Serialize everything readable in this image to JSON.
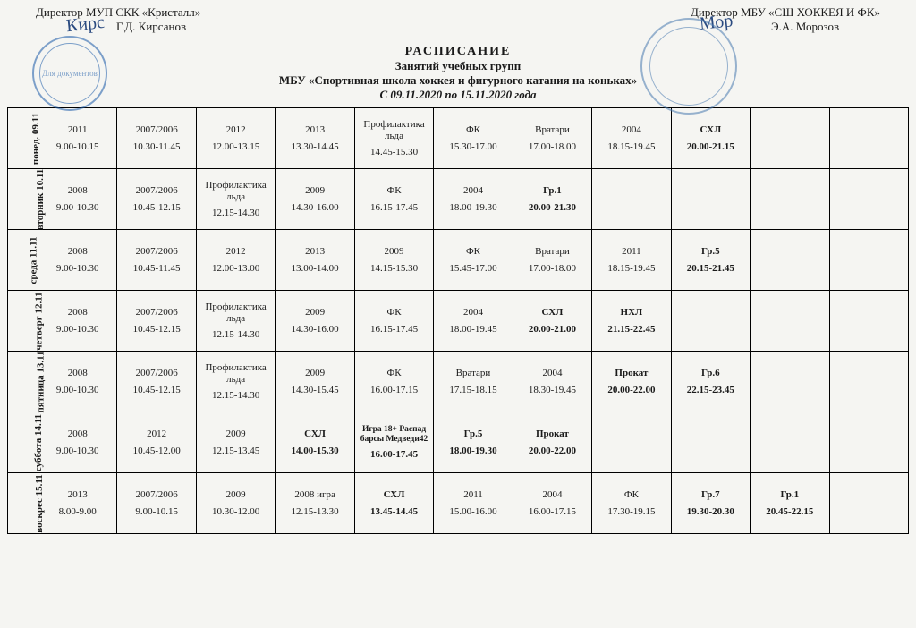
{
  "header": {
    "left_title": "Директор МУП СКК «Кристалл»",
    "left_name": "Г.Д. Кирсанов",
    "left_signature": "Кирс",
    "right_title": "Директор МБУ «СШ ХОККЕЯ И ФК»",
    "right_name": "Э.А. Морозов",
    "right_signature": "Мор",
    "stamp_left_text": "Для документов",
    "stamp_right_text": ""
  },
  "title": {
    "main": "РАСПИСАНИЕ",
    "sub1": "Занятий учебных групп",
    "sub2": "МБУ «Спортивная школа хоккея и фигурного катания на коньках»",
    "dates": "С 09.11.2020 по 15.11.2020 года"
  },
  "days": [
    {
      "label": "понед. 09.11"
    },
    {
      "label": "вторник 10.11"
    },
    {
      "label": "среда 11.11"
    },
    {
      "label": "четверг 12.11"
    },
    {
      "label": "пятница 13.11"
    },
    {
      "label": "суббота 14.11"
    },
    {
      "label": "воскрес 15.11"
    }
  ],
  "rows": [
    [
      {
        "g": "2011",
        "t": "9.00-10.15"
      },
      {
        "g": "2007/2006",
        "t": "10.30-11.45"
      },
      {
        "g": "2012",
        "t": "12.00-13.15"
      },
      {
        "g": "2013",
        "t": "13.30-14.45"
      },
      {
        "g": "Профилактика льда",
        "t": "14.45-15.30"
      },
      {
        "g": "ФК",
        "t": "15.30-17.00"
      },
      {
        "g": "Вратари",
        "t": "17.00-18.00"
      },
      {
        "g": "2004",
        "t": "18.15-19.45"
      },
      {
        "g": "СХЛ",
        "t": "20.00-21.15",
        "bold": true
      },
      {
        "g": "",
        "t": ""
      },
      {
        "g": "",
        "t": ""
      }
    ],
    [
      {
        "g": "2008",
        "t": "9.00-10.30"
      },
      {
        "g": "2007/2006",
        "t": "10.45-12.15"
      },
      {
        "g": "Профилактика льда",
        "t": "12.15-14.30"
      },
      {
        "g": "2009",
        "t": "14.30-16.00"
      },
      {
        "g": "ФК",
        "t": "16.15-17.45"
      },
      {
        "g": "2004",
        "t": "18.00-19.30"
      },
      {
        "g": "Гр.1",
        "t": "20.00-21.30",
        "bold": true
      },
      {
        "g": "",
        "t": ""
      },
      {
        "g": "",
        "t": ""
      },
      {
        "g": "",
        "t": ""
      },
      {
        "g": "",
        "t": ""
      }
    ],
    [
      {
        "g": "2008",
        "t": "9.00-10.30"
      },
      {
        "g": "2007/2006",
        "t": "10.45-11.45"
      },
      {
        "g": "2012",
        "t": "12.00-13.00"
      },
      {
        "g": "2013",
        "t": "13.00-14.00"
      },
      {
        "g": "2009",
        "t": "14.15-15.30"
      },
      {
        "g": "ФК",
        "t": "15.45-17.00"
      },
      {
        "g": "Вратари",
        "t": "17.00-18.00"
      },
      {
        "g": "2011",
        "t": "18.15-19.45"
      },
      {
        "g": "Гр.5",
        "t": "20.15-21.45",
        "bold": true
      },
      {
        "g": "",
        "t": ""
      },
      {
        "g": "",
        "t": ""
      }
    ],
    [
      {
        "g": "2008",
        "t": "9.00-10.30"
      },
      {
        "g": "2007/2006",
        "t": "10.45-12.15"
      },
      {
        "g": "Профилактика льда",
        "t": "12.15-14.30"
      },
      {
        "g": "2009",
        "t": "14.30-16.00"
      },
      {
        "g": "ФК",
        "t": "16.15-17.45"
      },
      {
        "g": "2004",
        "t": "18.00-19.45"
      },
      {
        "g": "СХЛ",
        "t": "20.00-21.00",
        "bold": true
      },
      {
        "g": "НХЛ",
        "t": "21.15-22.45",
        "bold": true
      },
      {
        "g": "",
        "t": ""
      },
      {
        "g": "",
        "t": ""
      },
      {
        "g": "",
        "t": ""
      }
    ],
    [
      {
        "g": "2008",
        "t": "9.00-10.30"
      },
      {
        "g": "2007/2006",
        "t": "10.45-12.15"
      },
      {
        "g": "Профилактика льда",
        "t": "12.15-14.30"
      },
      {
        "g": "2009",
        "t": "14.30-15.45"
      },
      {
        "g": "ФК",
        "t": "16.00-17.15"
      },
      {
        "g": "Вратари",
        "t": "17.15-18.15"
      },
      {
        "g": "2004",
        "t": "18.30-19.45"
      },
      {
        "g": "Прокат",
        "t": "20.00-22.00",
        "bold": true
      },
      {
        "g": "Гр.6",
        "t": "22.15-23.45",
        "bold": true
      },
      {
        "g": "",
        "t": ""
      },
      {
        "g": "",
        "t": ""
      }
    ],
    [
      {
        "g": "2008",
        "t": "9.00-10.30"
      },
      {
        "g": "2012",
        "t": "10.45-12.00"
      },
      {
        "g": "2009",
        "t": "12.15-13.45"
      },
      {
        "g": "СХЛ",
        "t": "14.00-15.30",
        "bold": true
      },
      {
        "g": "Игра 18+ Распад барсы Медведи42",
        "t": "16.00-17.45",
        "small": true,
        "bold": true
      },
      {
        "g": "Гр.5",
        "t": "18.00-19.30",
        "bold": true
      },
      {
        "g": "Прокат",
        "t": "20.00-22.00",
        "bold": true
      },
      {
        "g": "",
        "t": ""
      },
      {
        "g": "",
        "t": ""
      },
      {
        "g": "",
        "t": ""
      },
      {
        "g": "",
        "t": ""
      }
    ],
    [
      {
        "g": "2013",
        "t": "8.00-9.00"
      },
      {
        "g": "2007/2006",
        "t": "9.00-10.15"
      },
      {
        "g": "2009",
        "t": "10.30-12.00"
      },
      {
        "g": "2008 игра",
        "t": "12.15-13.30"
      },
      {
        "g": "СХЛ",
        "t": "13.45-14.45",
        "bold": true
      },
      {
        "g": "2011",
        "t": "15.00-16.00"
      },
      {
        "g": "2004",
        "t": "16.00-17.15"
      },
      {
        "g": "ФК",
        "t": "17.30-19.15"
      },
      {
        "g": "Гр.7",
        "t": "19.30-20.30",
        "bold": true
      },
      {
        "g": "Гр.1",
        "t": "20.45-22.15",
        "bold": true
      },
      {
        "g": "",
        "t": ""
      }
    ]
  ]
}
